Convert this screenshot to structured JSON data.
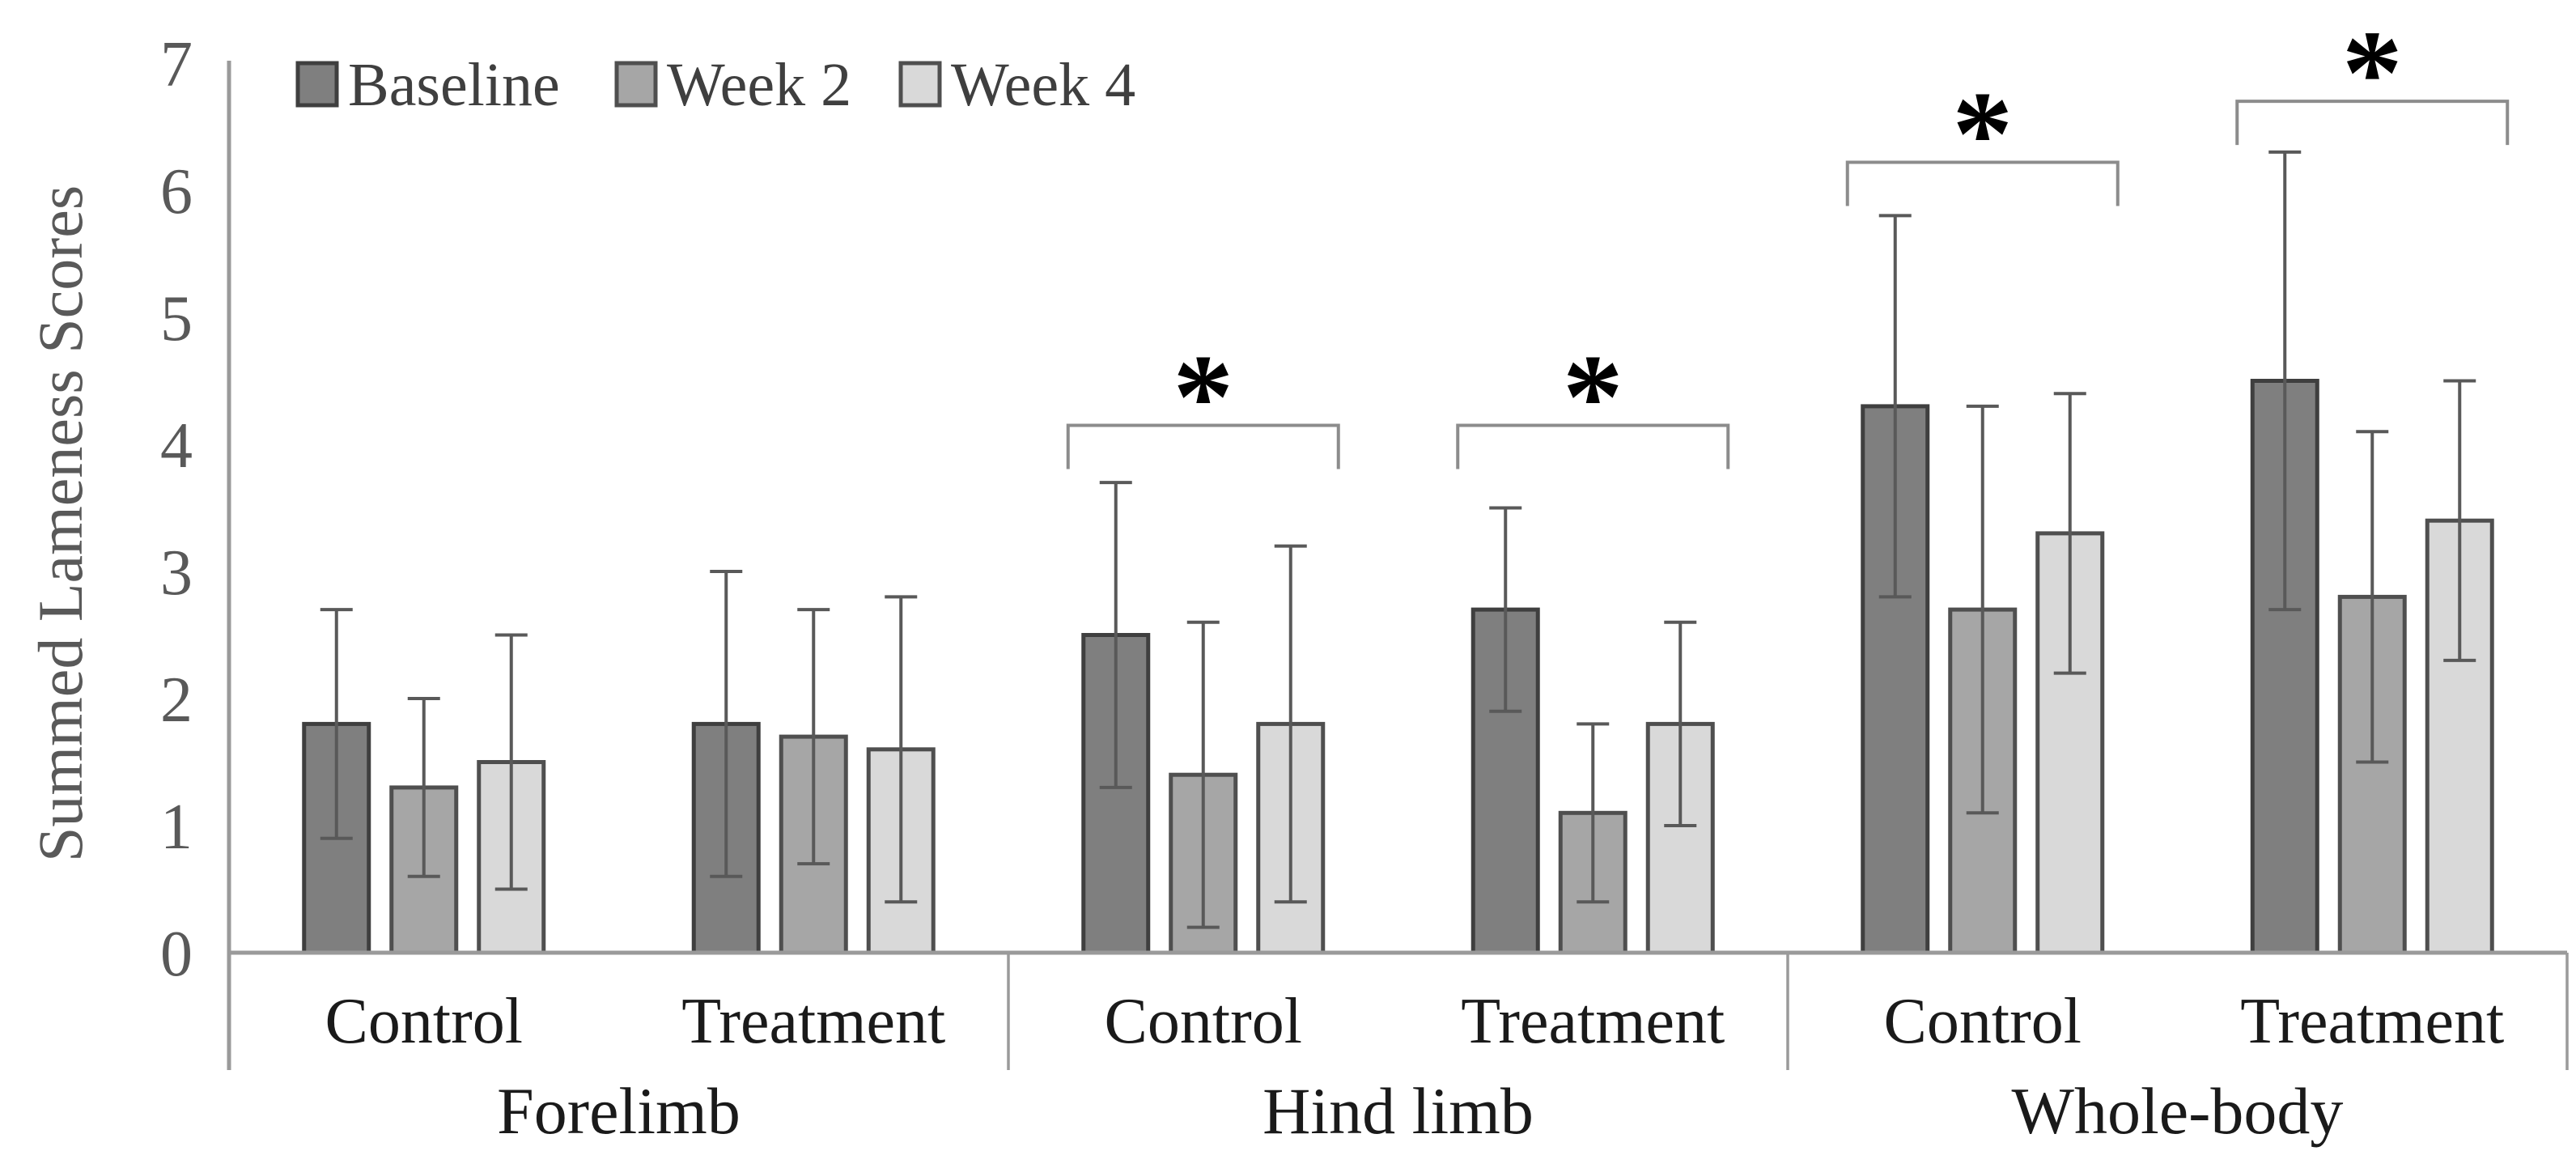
{
  "chart_data": {
    "type": "bar",
    "title": "",
    "ylabel": "Summed Lameness Scores",
    "xlabel": "",
    "ylim": [
      0,
      7
    ],
    "yticks": [
      0,
      1,
      2,
      3,
      4,
      5,
      6,
      7
    ],
    "grid": false,
    "legend_position": "top-left-inside",
    "groups": [
      "Forelimb",
      "Hind limb",
      "Whole-body"
    ],
    "categories": [
      "Control",
      "Treatment",
      "Control",
      "Treatment",
      "Control",
      "Treatment"
    ],
    "category_group_index": [
      0,
      0,
      1,
      1,
      2,
      2
    ],
    "series": [
      {
        "name": "Baseline",
        "values": [
          1.8,
          1.8,
          2.5,
          2.7,
          4.3,
          4.5
        ],
        "sd": [
          0.9,
          1.2,
          1.2,
          0.8,
          1.5,
          1.8
        ]
      },
      {
        "name": "Week 2",
        "values": [
          1.3,
          1.7,
          1.4,
          1.1,
          2.7,
          2.8
        ],
        "sd": [
          0.7,
          1.0,
          1.2,
          0.7,
          1.6,
          1.3
        ]
      },
      {
        "name": "Week 4",
        "values": [
          1.5,
          1.6,
          1.8,
          1.8,
          3.3,
          3.4
        ],
        "sd": [
          1.0,
          1.2,
          1.4,
          0.8,
          1.1,
          1.1
        ]
      }
    ],
    "error_bars": "plus-minus sd, capped",
    "significance_brackets": [
      {
        "category_index": 2,
        "group": "Hind limb",
        "category": "Control",
        "symbol": "*",
        "height": 4.15
      },
      {
        "category_index": 3,
        "group": "Hind limb",
        "category": "Treatment",
        "symbol": "*",
        "height": 4.15
      },
      {
        "category_index": 4,
        "group": "Whole-body",
        "category": "Control",
        "symbol": "*",
        "height": 6.22
      },
      {
        "category_index": 5,
        "group": "Whole-body",
        "category": "Treatment",
        "symbol": "*",
        "height": 6.7
      }
    ],
    "colors": {
      "series_fill": [
        "#7f7f7f",
        "#a6a6a6",
        "#d9d9d9"
      ],
      "series_border": [
        "#3f3f3f",
        "#4f4f4f",
        "#4f4f4f"
      ],
      "error_bar": "#595959",
      "axis_line": "#9a9a9a",
      "bracket_line": "#8c8c8c",
      "tick_text": "#595959",
      "category_text": "#1a1a1a",
      "group_text": "#1a1a1a",
      "legend_text": "#3f3f3f",
      "asterisk": "#000000",
      "background": "#ffffff"
    }
  }
}
